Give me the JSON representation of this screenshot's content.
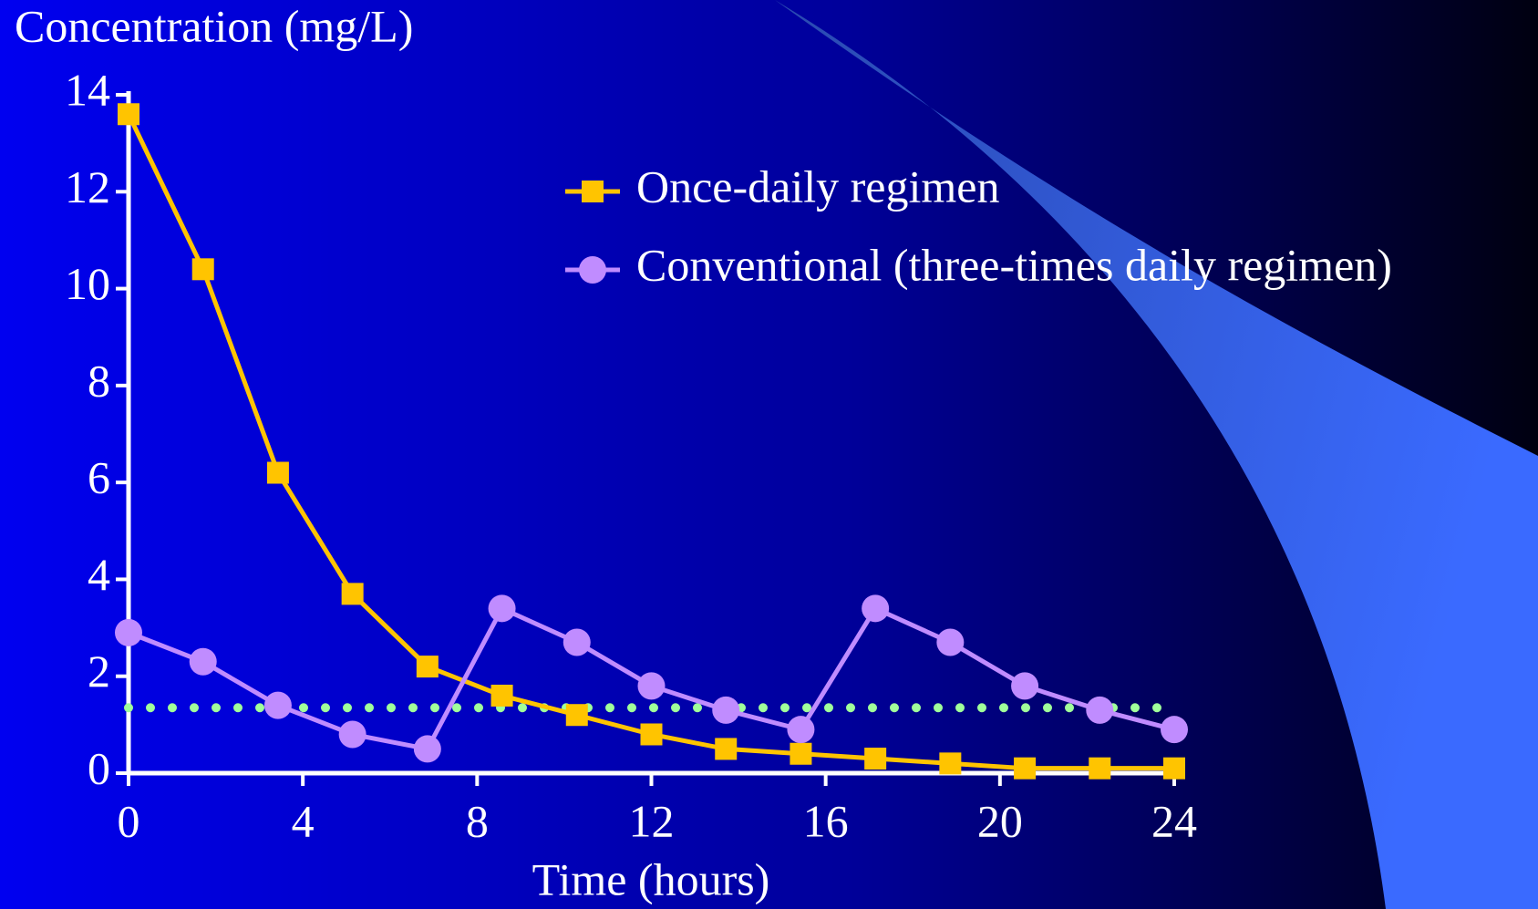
{
  "chart_data": {
    "type": "line",
    "y_label": "Concentration (mg/L)",
    "x_label": "Time (hours)",
    "x": [
      0,
      1.71,
      3.43,
      5.14,
      6.86,
      8.57,
      10.29,
      12,
      13.71,
      15.43,
      17.14,
      18.86,
      20.57,
      22.29,
      24
    ],
    "series": [
      {
        "name": "Once-daily regimen",
        "color": "#ffc400",
        "marker": "square",
        "values": [
          13.6,
          10.4,
          6.2,
          3.7,
          2.2,
          1.6,
          1.2,
          0.8,
          0.5,
          0.4,
          0.3,
          0.2,
          0.1,
          0.1,
          0.1
        ]
      },
      {
        "name": "Conventional (three-times daily regimen)",
        "color": "#c08cff",
        "marker": "circle",
        "values": [
          2.9,
          2.3,
          1.4,
          0.8,
          0.5,
          3.4,
          2.7,
          1.8,
          1.3,
          0.9,
          3.4,
          2.7,
          1.8,
          1.3,
          0.9
        ]
      }
    ],
    "reference_line": {
      "value": 1.35,
      "color": "#a0ff9a"
    },
    "xlim": [
      0,
      24
    ],
    "xticks": [
      0,
      4,
      8,
      12,
      16,
      20,
      24
    ],
    "ylim": [
      0,
      14
    ],
    "yticks": [
      0,
      2,
      4,
      6,
      8,
      10,
      12,
      14
    ]
  }
}
